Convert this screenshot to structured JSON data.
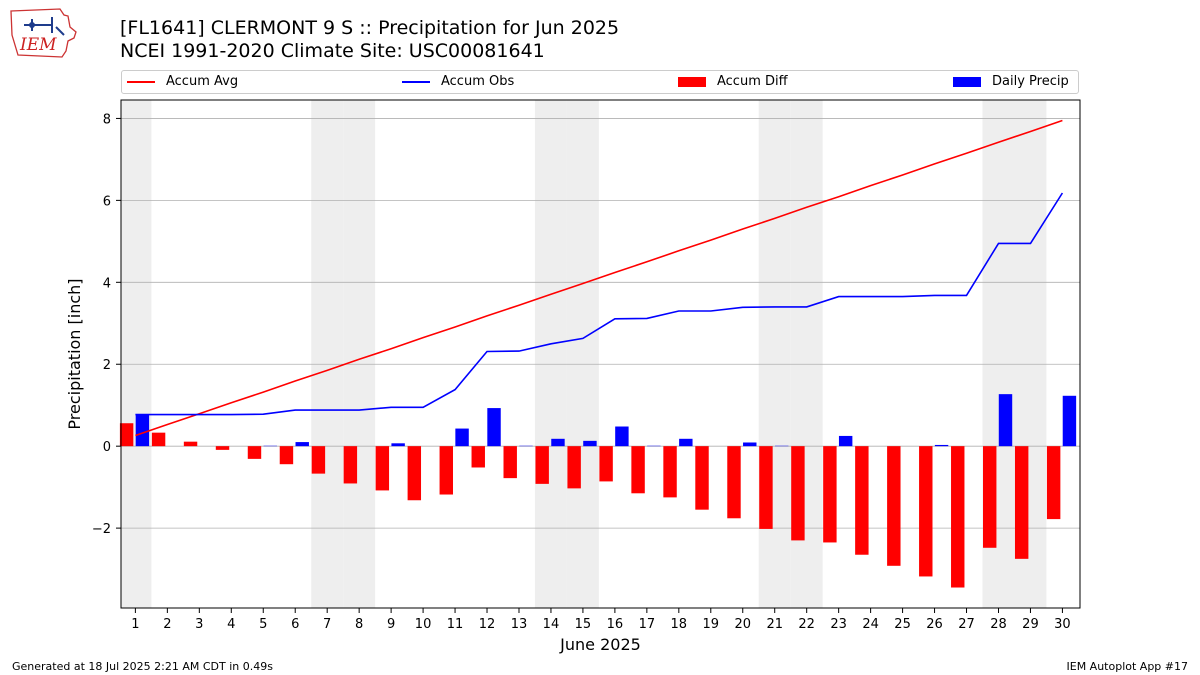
{
  "header": {
    "title_line1": "[FL1641] CLERMONT 9 S :: Precipitation for Jun 2025",
    "title_line2": "NCEI 1991-2020 Climate Site: USC00081641",
    "logo_text": "IEM"
  },
  "legend": {
    "placement": "top",
    "items": [
      {
        "label": "Accum Avg",
        "kind": "line",
        "color": "#ff0000"
      },
      {
        "label": "Accum Obs",
        "kind": "line",
        "color": "#0000ff"
      },
      {
        "label": "Accum Diff",
        "kind": "bar",
        "color": "#ff0000"
      },
      {
        "label": "Daily Precip",
        "kind": "bar",
        "color": "#0000ff"
      }
    ]
  },
  "footer": {
    "left": "Generated at 18 Jul 2025 2:21 AM CDT in 0.49s",
    "right": "IEM Autoplot App #17"
  },
  "colors": {
    "avg": "#ff0000",
    "obs": "#0000ff",
    "diff": "#ff0000",
    "daily": "#0000ff",
    "weekend_shade": "#eeeeee",
    "grid": "#b0b0b0"
  },
  "chart_data": {
    "type": "bar",
    "xlabel": "June 2025",
    "ylabel": "Precipitation [inch]",
    "ylim": [
      -3.95,
      8.45
    ],
    "yticks": [
      -2,
      0,
      2,
      4,
      6,
      8
    ],
    "ytick_labels": [
      "−2",
      "0",
      "2",
      "4",
      "6",
      "8"
    ],
    "grid": "horizontal",
    "x": [
      1,
      2,
      3,
      4,
      5,
      6,
      7,
      8,
      9,
      10,
      11,
      12,
      13,
      14,
      15,
      16,
      17,
      18,
      19,
      20,
      21,
      22,
      23,
      24,
      25,
      26,
      27,
      28,
      29,
      30
    ],
    "shaded_days": [
      1,
      7,
      8,
      14,
      15,
      21,
      22,
      28,
      29
    ],
    "series": [
      {
        "name": "Accum Avg",
        "type": "line",
        "values": [
          0.26,
          0.53,
          0.79,
          1.06,
          1.32,
          1.59,
          1.85,
          2.12,
          2.38,
          2.65,
          2.91,
          3.18,
          3.44,
          3.71,
          3.97,
          4.24,
          4.5,
          4.77,
          5.03,
          5.3,
          5.56,
          5.83,
          6.09,
          6.36,
          6.62,
          6.89,
          7.15,
          7.42,
          7.68,
          7.95
        ]
      },
      {
        "name": "Accum Obs",
        "type": "line",
        "values": [
          0.77,
          0.77,
          0.77,
          0.77,
          0.78,
          0.88,
          0.88,
          0.88,
          0.95,
          0.95,
          1.38,
          2.31,
          2.32,
          2.5,
          2.63,
          3.11,
          3.12,
          3.3,
          3.3,
          3.39,
          3.4,
          3.4,
          3.65,
          3.65,
          3.65,
          3.68,
          3.68,
          4.95,
          4.95,
          6.18
        ]
      },
      {
        "name": "Accum Diff",
        "type": "bar",
        "values": [
          0.56,
          0.33,
          0.11,
          -0.09,
          -0.31,
          -0.44,
          -0.67,
          -0.91,
          -1.08,
          -1.32,
          -1.18,
          -0.52,
          -0.78,
          -0.92,
          -1.03,
          -0.86,
          -1.15,
          -1.25,
          -1.55,
          -1.76,
          -2.02,
          -2.3,
          -2.35,
          -2.65,
          -2.92,
          -3.18,
          -3.45,
          -2.48,
          -2.75,
          -1.78
        ]
      },
      {
        "name": "Daily Precip",
        "type": "bar",
        "values": [
          0.77,
          0.0,
          0.0,
          0.0,
          0.01,
          0.1,
          0.0,
          0.0,
          0.07,
          0.0,
          0.43,
          0.93,
          0.01,
          0.18,
          0.13,
          0.48,
          0.01,
          0.18,
          0.0,
          0.09,
          0.01,
          0.0,
          0.25,
          0.0,
          0.0,
          0.03,
          0.0,
          1.27,
          0.0,
          1.23
        ]
      }
    ]
  }
}
